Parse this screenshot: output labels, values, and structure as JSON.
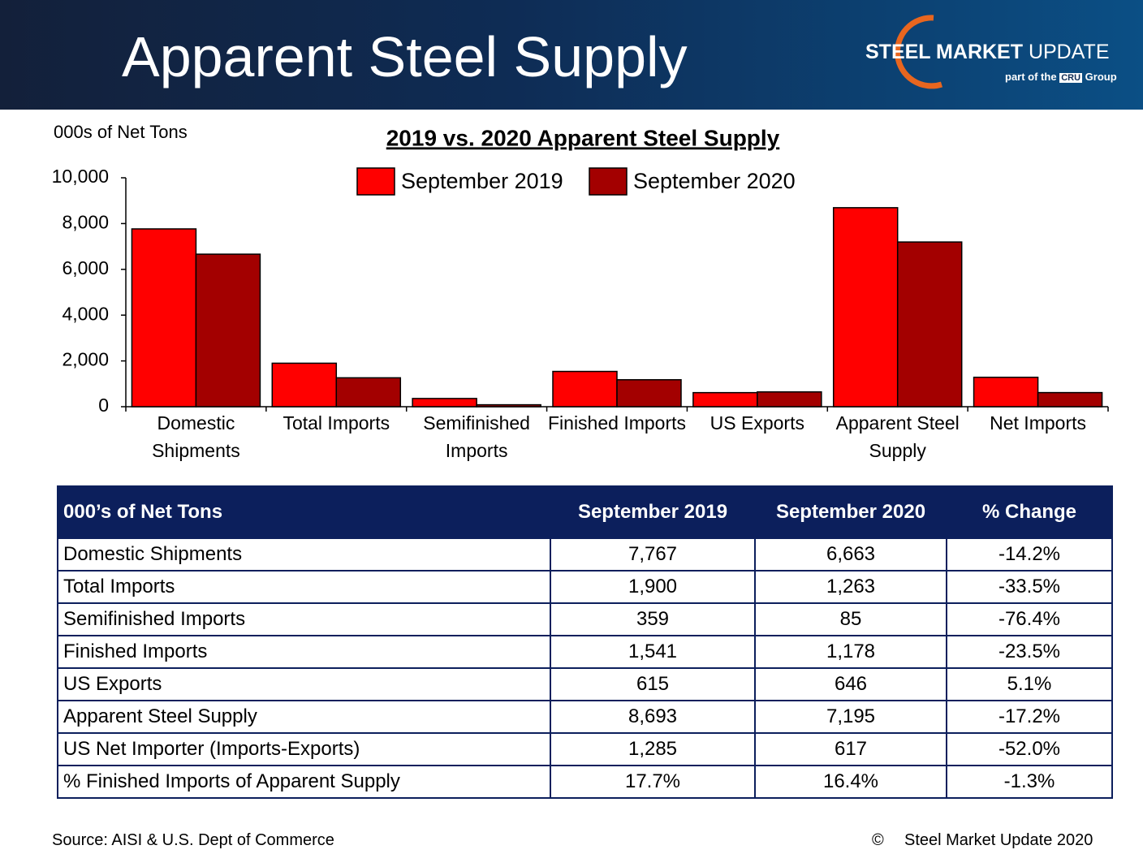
{
  "header": {
    "title": "Apparent Steel Supply",
    "logo": {
      "brand_bold": "STEEL MARKET",
      "brand_light": "UPDATE",
      "tagline_pre": "part of the",
      "tagline_cru": "CRU",
      "tagline_post": "Group"
    }
  },
  "chart_data": {
    "type": "bar",
    "title": "2019 vs. 2020 Apparent Steel Supply",
    "y_label": "000s of Net Tons",
    "categories": [
      "Domestic Shipments",
      "Total Imports",
      "Semifinished Imports",
      "Finished Imports",
      "US Exports",
      "Apparent Steel Supply",
      "Net Imports"
    ],
    "series": [
      {
        "name": "September 2019",
        "color": "#ff0000",
        "values": [
          7767,
          1900,
          359,
          1541,
          615,
          8693,
          1285
        ]
      },
      {
        "name": "September 2020",
        "color": "#a30000",
        "values": [
          6663,
          1263,
          85,
          1178,
          646,
          7195,
          617
        ]
      }
    ],
    "ylim": [
      0,
      10000
    ],
    "yticks": [
      0,
      {
        "value": 2000,
        "label": "2,000"
      },
      {
        "value": 4000,
        "label": "4,000"
      },
      {
        "value": 6000,
        "label": "6,000"
      },
      {
        "value": 8000,
        "label": "8,000"
      },
      {
        "value": 10000,
        "label": "10,000"
      }
    ],
    "grid": false,
    "legend": "top"
  },
  "table": {
    "header": [
      "000’s of Net Tons",
      "September 2019",
      "September 2020",
      "% Change"
    ],
    "rows": [
      [
        "Domestic Shipments",
        "7,767",
        "6,663",
        "-14.2%"
      ],
      [
        "Total Imports",
        "1,900",
        "1,263",
        "-33.5%"
      ],
      [
        "Semifinished Imports",
        "359",
        "85",
        "-76.4%"
      ],
      [
        "Finished Imports",
        "1,541",
        "1,178",
        "-23.5%"
      ],
      [
        "US Exports",
        "615",
        "646",
        "5.1%"
      ],
      [
        "Apparent Steel Supply",
        "8,693",
        "7,195",
        "-17.2%"
      ],
      [
        "US Net Importer (Imports-Exports)",
        "1,285",
        "617",
        "-52.0%"
      ],
      [
        "% Finished Imports of Apparent Supply",
        "17.7%",
        "16.4%",
        "-1.3%"
      ]
    ]
  },
  "footer": {
    "source": "Source:  AISI & U.S. Dept of Commerce",
    "copyright_symbol": "©",
    "copyright": "Steel Market Update 2020"
  }
}
